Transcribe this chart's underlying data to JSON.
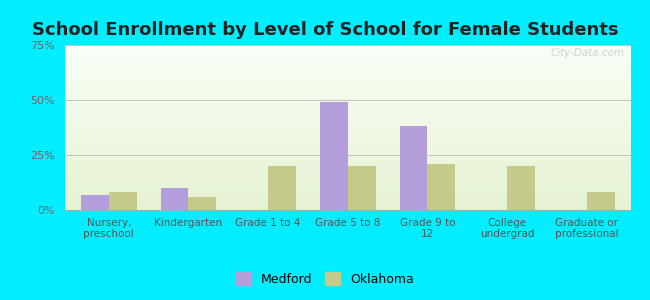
{
  "title": "School Enrollment by Level of School for Female Students",
  "categories": [
    "Nursery,\npreschool",
    "Kindergarten",
    "Grade 1 to 4",
    "Grade 5 to 8",
    "Grade 9 to\n12",
    "College\nundergrad",
    "Graduate or\nprofessional"
  ],
  "medford": [
    7,
    10,
    0,
    49,
    38,
    0,
    0
  ],
  "oklahoma": [
    8,
    6,
    20,
    20,
    21,
    20,
    8
  ],
  "bar_color_medford": "#b39ddb",
  "bar_color_oklahoma": "#c5c98a",
  "ylim": [
    0,
    75
  ],
  "yticks": [
    0,
    25,
    50,
    75
  ],
  "ytick_labels": [
    "0%",
    "25%",
    "50%",
    "75%"
  ],
  "background_color": "#00eeff",
  "legend_medford": "Medford",
  "legend_oklahoma": "Oklahoma",
  "title_fontsize": 13,
  "bar_width": 0.35,
  "watermark": "City-Data.com"
}
